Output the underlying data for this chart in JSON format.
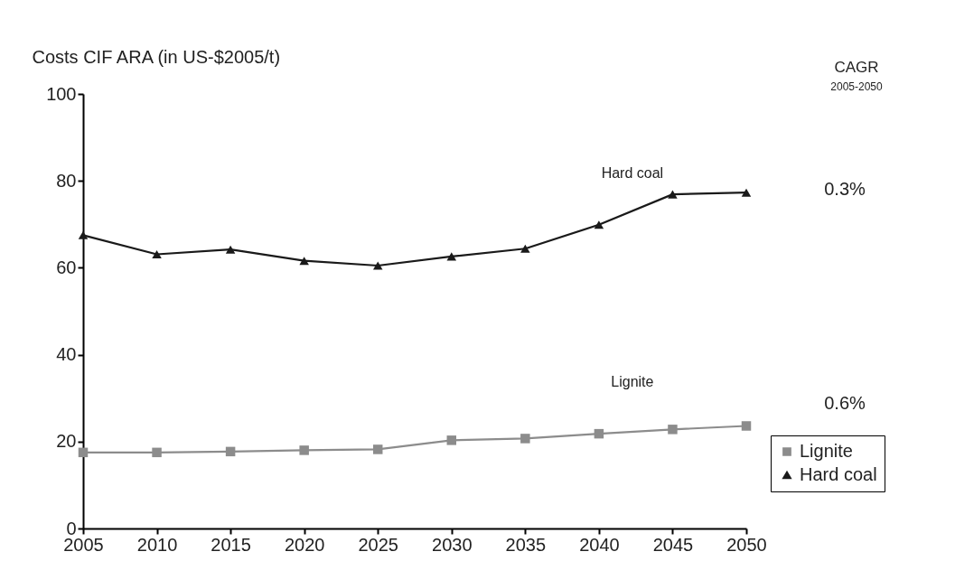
{
  "chart_data": {
    "type": "line",
    "ylabel": "Costs CIF ARA (in US-$2005/t)",
    "x": [
      2005,
      2010,
      2015,
      2020,
      2025,
      2030,
      2035,
      2040,
      2045,
      2050
    ],
    "series": [
      {
        "name": "Lignite",
        "color": "#8c8c8c",
        "marker": "square",
        "values": [
          17.5,
          17.5,
          17.7,
          18.0,
          18.2,
          20.3,
          20.7,
          21.8,
          22.8,
          23.6
        ]
      },
      {
        "name": "Hard coal",
        "color": "#1a1a1a",
        "marker": "triangle",
        "values": [
          67.5,
          63.1,
          64.2,
          61.6,
          60.5,
          62.6,
          64.4,
          69.9,
          76.9,
          77.3
        ]
      }
    ],
    "xlim": [
      2005,
      2050
    ],
    "xticks": [
      2005,
      2010,
      2015,
      2020,
      2025,
      2030,
      2035,
      2040,
      2045,
      2050
    ],
    "ylim": [
      0,
      100
    ],
    "yticks": [
      0,
      20,
      40,
      60,
      80,
      100
    ],
    "grid": false,
    "legend": "bottom right",
    "line_style": "solid",
    "annotations": [
      "CAGR",
      "2005-2050",
      "0.3%",
      "0.6%"
    ]
  }
}
